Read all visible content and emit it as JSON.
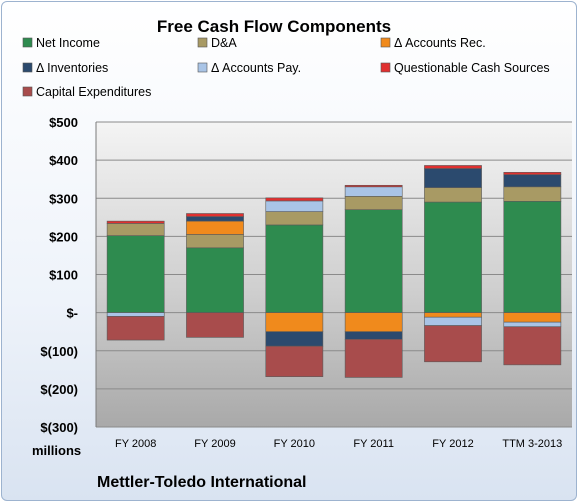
{
  "chart_data": {
    "type": "bar",
    "stacked": true,
    "title": "Free Cash Flow Components",
    "units_label": "millions",
    "company": "Mettler-Toledo International",
    "categories": [
      "FY 2008",
      "FY 2009",
      "FY 2010",
      "FY 2011",
      "FY 2012",
      "TTM 3-2013"
    ],
    "ylim": [
      -300,
      500
    ],
    "yticks": [
      {
        "value": 500,
        "label": "$500"
      },
      {
        "value": 400,
        "label": "$400"
      },
      {
        "value": 300,
        "label": "$300"
      },
      {
        "value": 200,
        "label": "$200"
      },
      {
        "value": 100,
        "label": "$100"
      },
      {
        "value": 0,
        "label": "$-"
      },
      {
        "value": -100,
        "label": "$(100)"
      },
      {
        "value": -200,
        "label": "$(200)"
      },
      {
        "value": -300,
        "label": "$(300)"
      }
    ],
    "grid": true,
    "legend_position": "top",
    "series": [
      {
        "name": "Net Income",
        "color": "#2e8b4f",
        "values": [
          202,
          170,
          230,
          270,
          290,
          292
        ]
      },
      {
        "name": "D&A",
        "color": "#a89a64",
        "values": [
          32,
          35,
          35,
          35,
          38,
          38
        ]
      },
      {
        "name": "Δ Accounts Rec.",
        "color": "#f08a1c",
        "values": [
          0,
          35,
          -50,
          -50,
          -12,
          -25
        ]
      },
      {
        "name": "Δ Inventories",
        "color": "#2b4a6e",
        "values": [
          0,
          12,
          -38,
          -20,
          50,
          32
        ]
      },
      {
        "name": "Δ Accounts Pay.",
        "color": "#a9c4e6",
        "values": [
          -10,
          0,
          28,
          25,
          -22,
          -12
        ]
      },
      {
        "name": "Questionable Cash Sources",
        "color": "#e03030",
        "values": [
          6,
          8,
          8,
          4,
          8,
          6
        ]
      },
      {
        "name": "Capital Expenditures",
        "color": "#a84c4c",
        "values": [
          -62,
          -65,
          -80,
          -100,
          -95,
          -100
        ]
      }
    ]
  }
}
